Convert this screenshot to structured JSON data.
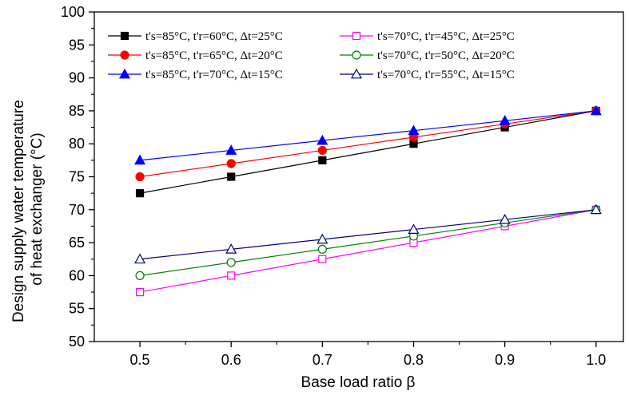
{
  "chart_data": {
    "type": "line",
    "xlabel": "Base load ratio β",
    "ylabel_lines": [
      "Design supply water temperature",
      "of heat exchanger (°C)"
    ],
    "xlim": [
      0.45,
      1.03
    ],
    "ylim": [
      50,
      100
    ],
    "x": [
      0.5,
      0.6,
      0.7,
      0.8,
      0.9,
      1.0
    ],
    "x_tick_labels": [
      "0.5",
      "0.6",
      "0.7",
      "0.8",
      "0.9",
      "1.0"
    ],
    "y_ticks": [
      50,
      55,
      60,
      65,
      70,
      75,
      80,
      85,
      90,
      95,
      100
    ],
    "y_tick_labels": [
      "50",
      "55",
      "60",
      "65",
      "70",
      "75",
      "80",
      "85",
      "90",
      "95",
      "100"
    ],
    "grid": false,
    "legend_position": "top",
    "series": [
      {
        "name": "t's=85°C, t'r=60°C, Δt=25°C",
        "color": "#000000",
        "marker": "square",
        "filled": true,
        "values": [
          72.5,
          75,
          77.5,
          80,
          82.5,
          85
        ]
      },
      {
        "name": "t's=85°C, t'r=65°C, Δt=20°C",
        "color": "#ff0000",
        "marker": "circle",
        "filled": true,
        "values": [
          75,
          77,
          79,
          81,
          83,
          85
        ]
      },
      {
        "name": "t's=85°C, t'r=70°C, Δt=15°C",
        "color": "#0000ff",
        "marker": "triangle",
        "filled": true,
        "values": [
          77.5,
          79,
          80.5,
          82,
          83.5,
          85
        ]
      },
      {
        "name": "t's=70°C, t'r=45°C, Δt=25°C",
        "color": "#ff00ff",
        "marker": "square",
        "filled": false,
        "values": [
          57.5,
          60,
          62.5,
          65,
          67.5,
          70
        ]
      },
      {
        "name": "t's=70°C, t'r=50°C, Δt=20°C",
        "color": "#008000",
        "marker": "circle",
        "filled": false,
        "values": [
          60,
          62,
          64,
          66,
          68,
          70
        ]
      },
      {
        "name": "t's=70°C, t'r=55°C, Δt=15°C",
        "color": "#000080",
        "marker": "triangle",
        "filled": false,
        "values": [
          62.5,
          64,
          65.5,
          67,
          68.5,
          70
        ]
      }
    ]
  }
}
